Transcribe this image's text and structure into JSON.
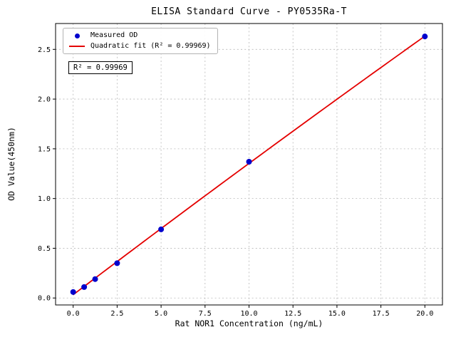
{
  "chart_data": {
    "type": "scatter",
    "title": "ELISA Standard Curve - PY0535Ra-T",
    "xlabel": "Rat NOR1 Concentration (ng/mL)",
    "ylabel": "OD Value(450nm)",
    "xlim": [
      -1.0,
      21.0
    ],
    "ylim": [
      -0.07,
      2.76
    ],
    "xticks": [
      0,
      2.5,
      5,
      7.5,
      10,
      12.5,
      15,
      17.5,
      20
    ],
    "xtick_labels": [
      "0.0",
      "2.5",
      "5.0",
      "7.5",
      "10.0",
      "12.5",
      "15.0",
      "17.5",
      "20.0"
    ],
    "yticks": [
      0,
      0.5,
      1,
      1.5,
      2,
      2.5
    ],
    "ytick_labels": [
      "0.0",
      "0.5",
      "1.0",
      "1.5",
      "2.0",
      "2.5"
    ],
    "grid": true,
    "annotation": "R² = 0.99969",
    "legend": {
      "position": "upper-left",
      "entries": [
        {
          "label": "Measured OD",
          "marker": "dot",
          "color": "#0000cd"
        },
        {
          "label": "Quadratic fit (R² = 0.99969)",
          "marker": "line",
          "color": "#e40000"
        }
      ]
    },
    "series": [
      {
        "name": "Measured OD",
        "type": "scatter",
        "color": "#0000cd",
        "x": [
          0,
          0.625,
          1.25,
          2.5,
          5,
          10,
          20
        ],
        "y": [
          0.06,
          0.11,
          0.19,
          0.35,
          0.69,
          1.37,
          2.63
        ]
      },
      {
        "name": "Quadratic fit",
        "type": "line",
        "color": "#e40000",
        "fit": "quadratic",
        "fit_of_series": 0,
        "x_range": [
          0,
          20
        ]
      }
    ]
  }
}
